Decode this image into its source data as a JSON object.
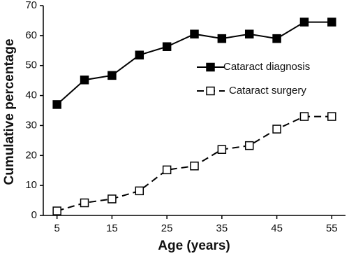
{
  "chart_data": {
    "type": "line",
    "x_label": "Age (years)",
    "y_label": "Cumulative percentage",
    "x": [
      5,
      10,
      15,
      20,
      25,
      30,
      35,
      40,
      45,
      50,
      55
    ],
    "series": [
      {
        "name": "Cataract diagnosis",
        "color": "#000000",
        "marker": "filled-square",
        "dashed": false,
        "values": [
          37,
          45.2,
          46.7,
          53.5,
          56.3,
          60.5,
          59,
          60.5,
          59,
          64.5,
          64.5
        ]
      },
      {
        "name": "Cataract surgery",
        "color": "#000000",
        "marker": "open-square",
        "dashed": true,
        "values": [
          1.5,
          4.2,
          5.5,
          8.2,
          15.2,
          16.5,
          22,
          23.3,
          28.8,
          33,
          33
        ]
      }
    ],
    "xlim": [
      2.5,
      57.5
    ],
    "xticks": [
      5,
      15,
      25,
      35,
      45,
      55
    ],
    "ylim": [
      0,
      70
    ],
    "yticks": [
      0,
      10,
      20,
      30,
      40,
      50,
      60,
      70
    ],
    "grid": false,
    "legend": "right"
  }
}
